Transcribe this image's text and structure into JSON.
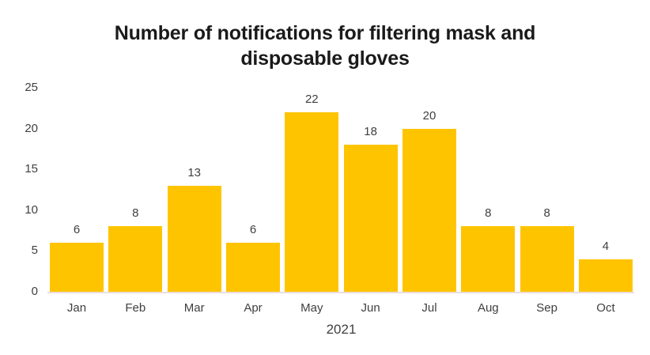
{
  "title": {
    "text": "Number of notifications for filtering mask and disposable gloves",
    "lines": [
      "Number of notifications for filtering mask and",
      "disposable gloves"
    ]
  },
  "chart_data": {
    "type": "bar",
    "categories": [
      "Jan",
      "Feb",
      "Mar",
      "Apr",
      "May",
      "Jun",
      "Jul",
      "Aug",
      "Sep",
      "Oct"
    ],
    "values": [
      6,
      8,
      13,
      6,
      22,
      18,
      20,
      8,
      8,
      4
    ],
    "title": "Number of notifications for filtering mask and disposable gloves",
    "xlabel": "2021",
    "ylabel": "",
    "ylim": [
      0,
      25
    ],
    "yticks": [
      0,
      5,
      10,
      15,
      20,
      25
    ],
    "grid": false,
    "legend": null,
    "data_labels": true,
    "colors": {
      "bar": "#FFC400",
      "text": "#3F3F3F",
      "title": "#1A1A1A",
      "axis_line": "#EBDDDA",
      "background": "#FFFFFF"
    }
  }
}
